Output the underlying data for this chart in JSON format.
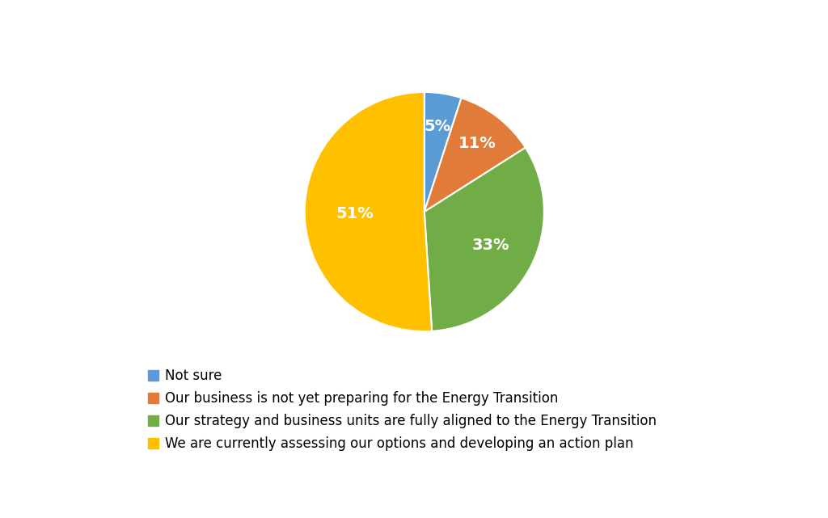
{
  "slices": [
    5,
    11,
    33,
    51
  ],
  "labels": [
    "5%",
    "11%",
    "33%",
    "51%"
  ],
  "colors": [
    "#5B9BD5",
    "#E07B39",
    "#70AD47",
    "#FFC000"
  ],
  "legend_labels": [
    "Not sure",
    "Our business is not yet preparing for the Energy Transition",
    "Our strategy and business units are fully aligned to the Energy Transition",
    "We are currently assessing our options and developing an action plan"
  ],
  "startangle": 90,
  "background_color": "#ffffff",
  "label_fontsize": 14,
  "legend_fontsize": 12,
  "label_distances": [
    0.72,
    0.72,
    0.62,
    0.58
  ]
}
